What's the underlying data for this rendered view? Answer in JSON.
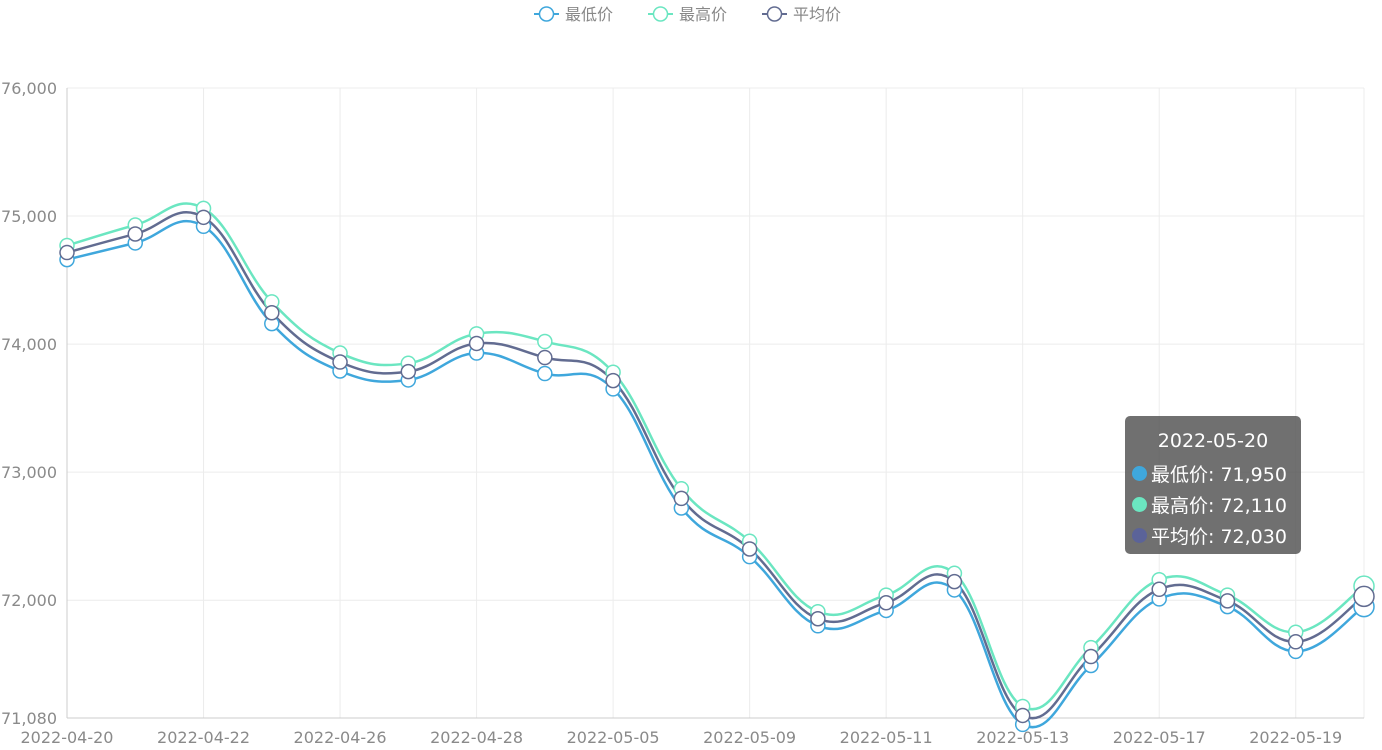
{
  "chart_data": {
    "type": "line",
    "smooth": true,
    "title": "",
    "xlabel": "",
    "ylabel": "",
    "ylim": [
      71080,
      76000
    ],
    "y_ticks": [
      71080,
      72000,
      73000,
      74000,
      75000,
      76000
    ],
    "y_tick_labels": [
      "71,080",
      "72,000",
      "73,000",
      "74,000",
      "75,000",
      "76,000"
    ],
    "x": [
      "2022-04-20",
      "2022-04-21",
      "2022-04-22",
      "2022-04-24",
      "2022-04-26",
      "2022-04-27",
      "2022-04-28",
      "2022-04-29",
      "2022-05-05",
      "2022-05-06",
      "2022-05-09",
      "2022-05-10",
      "2022-05-11",
      "2022-05-12",
      "2022-05-13",
      "2022-05-16",
      "2022-05-17",
      "2022-05-18",
      "2022-05-19",
      "2022-05-20"
    ],
    "x_tick_labels": [
      "2022-04-20",
      "2022-04-22",
      "2022-04-26",
      "2022-04-28",
      "2022-05-05",
      "2022-05-09",
      "2022-05-11",
      "2022-05-13",
      "2022-05-17",
      "2022-05-19"
    ],
    "x_tick_every": 2,
    "grid": true,
    "legend_position": "top-center",
    "series": [
      {
        "name": "最低价",
        "color": "#3fa7dc",
        "values": [
          74660,
          74790,
          74920,
          74160,
          73790,
          73720,
          73930,
          73770,
          73650,
          72720,
          72340,
          71800,
          71920,
          72080,
          71030,
          71490,
          72010,
          71950,
          71600,
          71950
        ]
      },
      {
        "name": "最高价",
        "color": "#6be6c1",
        "values": [
          74770,
          74930,
          75060,
          74330,
          73930,
          73850,
          74080,
          74020,
          73780,
          72870,
          72460,
          71910,
          72040,
          72210,
          71170,
          71630,
          72160,
          72040,
          71750,
          72110
        ]
      },
      {
        "name": "平均价",
        "color": "#626c91",
        "values": [
          74715,
          74860,
          74990,
          74245,
          73860,
          73785,
          74005,
          73895,
          73715,
          72795,
          72400,
          71855,
          71980,
          72145,
          71100,
          71560,
          72085,
          71995,
          71675,
          72030
        ]
      }
    ],
    "tooltip": {
      "title": "2022-05-20",
      "rows": [
        {
          "label": "最低价: 71,950",
          "color": "#3fa7dc"
        },
        {
          "label": "最高价: 72,110",
          "color": "#6be6c1"
        },
        {
          "label": "平均价: 72,030",
          "color": "#5b6399"
        }
      ]
    }
  }
}
